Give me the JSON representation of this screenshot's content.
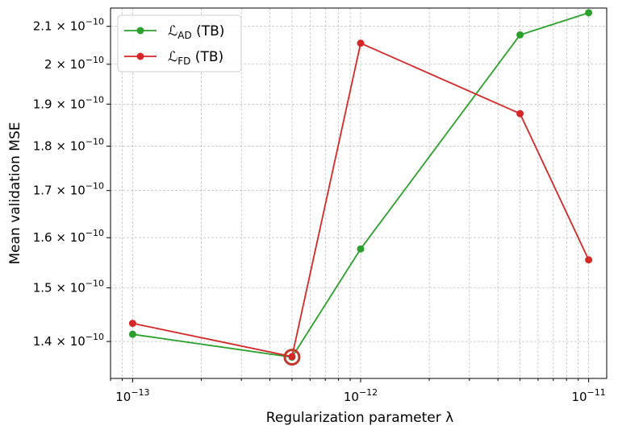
{
  "chart_data": {
    "type": "line",
    "xscale": "log",
    "yscale": "log",
    "xlabel": "Regularization parameter λ",
    "ylabel": "Mean validation MSE",
    "x": [
      1e-13,
      5e-13,
      1e-12,
      5e-12,
      1e-11
    ],
    "xlim": [
      8e-14,
      1.2e-11
    ],
    "ylim": [
      1.335e-10,
      2.15e-10
    ],
    "x_ticks": [
      {
        "value": 1e-13,
        "base": "10",
        "exp": "−13"
      },
      {
        "value": 1e-12,
        "base": "10",
        "exp": "−12"
      },
      {
        "value": 1e-11,
        "base": "10",
        "exp": "−11"
      }
    ],
    "y_ticks": [
      {
        "value": 1.4e-10,
        "mant": "1.4 × 10",
        "exp": "−10"
      },
      {
        "value": 1.5e-10,
        "mant": "1.5 × 10",
        "exp": "−10"
      },
      {
        "value": 1.6e-10,
        "mant": "1.6 × 10",
        "exp": "−10"
      },
      {
        "value": 1.7e-10,
        "mant": "1.7 × 10",
        "exp": "−10"
      },
      {
        "value": 1.8e-10,
        "mant": "1.8 × 10",
        "exp": "−10"
      },
      {
        "value": 1.9e-10,
        "mant": "1.9 × 10",
        "exp": "−10"
      },
      {
        "value": 2e-10,
        "mant": "2 × 10",
        "exp": "−10"
      },
      {
        "value": 2.1e-10,
        "mant": "2.1 × 10",
        "exp": "−10"
      }
    ],
    "grid": true,
    "legend_position": "top-left",
    "series": [
      {
        "name_main": "ℒ",
        "name_sub": "AD",
        "name_suffix": " (TB)",
        "color": "#2ca02c",
        "values": [
          1.413e-10,
          1.372e-10,
          1.577e-10,
          2.077e-10,
          2.137e-10
        ]
      },
      {
        "name_main": "ℒ",
        "name_sub": "FD",
        "name_suffix": " (TB)",
        "color": "#d62728",
        "values": [
          1.433e-10,
          1.373e-10,
          2.055e-10,
          1.877e-10,
          1.555e-10
        ]
      }
    ],
    "highlight": {
      "x": 5e-13,
      "y": 1.372e-10,
      "color": "#c0392b"
    }
  }
}
